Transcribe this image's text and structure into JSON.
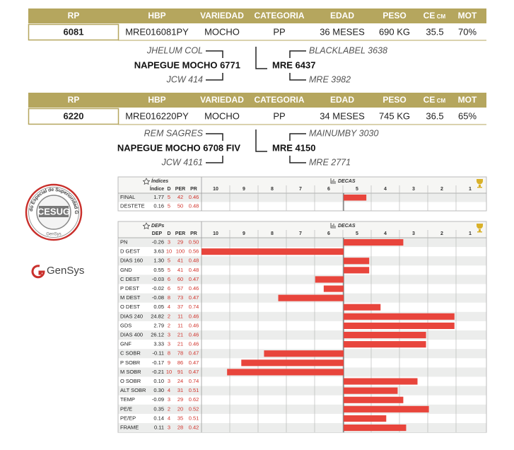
{
  "animals": [
    {
      "columns": [
        "RP",
        "HBP",
        "VARIEDAD",
        "CATEGORIA",
        "EDAD",
        "PESO",
        "CE",
        "MOT"
      ],
      "ce_unit": "CM",
      "values": [
        "6081",
        "MRE016081PY",
        "MOCHO",
        "PP",
        "36 MESES",
        "690 KG",
        "35.5",
        "70%"
      ],
      "pedigree": {
        "sire_sire": "JHELUM COL",
        "sire": "NAPEGUE MOCHO 6771",
        "sire_dam": "JCW 414",
        "dam_sire": "BLACKLABEL 3638",
        "dam": "MRE 6437",
        "dam_dam": "MRE 3982"
      }
    },
    {
      "columns": [
        "RP",
        "HBP",
        "VARIEDAD",
        "CATEGORIA",
        "EDAD",
        "PESO",
        "CE",
        "MOT"
      ],
      "ce_unit": "CM",
      "values": [
        "6220",
        "MRE016220PY",
        "MOCHO",
        "PP",
        "34 MESES",
        "745 KG",
        "36.5",
        "65%"
      ],
      "pedigree": {
        "sire_sire": "REM SAGRES",
        "sire": "NAPEGUE MOCHO 6708 FIV",
        "sire_dam": "JCW 4161",
        "dam_sire": "MAINUMBY 3030",
        "dam": "MRE 4150",
        "dam_dam": "MRE 2771"
      }
    }
  ],
  "seal": {
    "arc_text": "Certificado Especial de Superioridad Genética",
    "center": "CESUG",
    "bottom": "GenSys"
  },
  "brand": "GenSys",
  "bar_color": "#e8453c",
  "per_range": [
    100,
    0
  ],
  "indices": {
    "title": "Índices",
    "columns": [
      "Índice",
      "D",
      "PER",
      "PR"
    ],
    "decas_title": "DECAS",
    "decas": [
      10,
      9,
      8,
      7,
      6,
      5,
      4,
      3,
      2,
      1
    ],
    "rows": [
      {
        "name": "FINAL",
        "val": "1.77",
        "d": 5,
        "per": 42,
        "pr": "0.46"
      },
      {
        "name": "DESTETE",
        "val": "0.16",
        "d": 5,
        "per": 50,
        "pr": "0.48"
      }
    ]
  },
  "deps": {
    "title": "DEPs",
    "columns": [
      "DEP",
      "D",
      "PER",
      "PR"
    ],
    "decas_title": "DECAS",
    "decas": [
      10,
      9,
      8,
      7,
      6,
      5,
      4,
      3,
      2,
      1
    ],
    "rows": [
      {
        "name": "PN",
        "val": "-0.26",
        "d": 3,
        "per": 29,
        "pr": "0.50"
      },
      {
        "name": "D GEST",
        "val": "3.63",
        "d": 10,
        "per": 100,
        "pr": "0.56"
      },
      {
        "name": "DIAS 160",
        "val": "1.30",
        "d": 5,
        "per": 41,
        "pr": "0.48"
      },
      {
        "name": "GND",
        "val": "0.55",
        "d": 5,
        "per": 41,
        "pr": "0.48"
      },
      {
        "name": "C DEST",
        "val": "-0.03",
        "d": 6,
        "per": 60,
        "pr": "0.47"
      },
      {
        "name": "P DEST",
        "val": "-0.02",
        "d": 6,
        "per": 57,
        "pr": "0.46"
      },
      {
        "name": "M DEST",
        "val": "-0.08",
        "d": 8,
        "per": 73,
        "pr": "0.47"
      },
      {
        "name": "O DEST",
        "val": "0.05",
        "d": 4,
        "per": 37,
        "pr": "0.74"
      },
      {
        "name": "DIAS 240",
        "val": "24.82",
        "d": 2,
        "per": 11,
        "pr": "0.46"
      },
      {
        "name": "GDS",
        "val": "2.79",
        "d": 2,
        "per": 11,
        "pr": "0.46"
      },
      {
        "name": "DIAS 400",
        "val": "26.12",
        "d": 3,
        "per": 21,
        "pr": "0.46"
      },
      {
        "name": "GNF",
        "val": "3.33",
        "d": 3,
        "per": 21,
        "pr": "0.46"
      },
      {
        "name": "C SOBR",
        "val": "-0.11",
        "d": 8,
        "per": 78,
        "pr": "0.47"
      },
      {
        "name": "P SOBR",
        "val": "-0.17",
        "d": 9,
        "per": 86,
        "pr": "0.47"
      },
      {
        "name": "M SOBR",
        "val": "-0.21",
        "d": 10,
        "per": 91,
        "pr": "0.47"
      },
      {
        "name": "O SOBR",
        "val": "0.10",
        "d": 3,
        "per": 24,
        "pr": "0.74"
      },
      {
        "name": "ALT SOBR",
        "val": "0.30",
        "d": 4,
        "per": 31,
        "pr": "0.51"
      },
      {
        "name": "TEMP",
        "val": "-0.09",
        "d": 3,
        "per": 29,
        "pr": "0.62"
      },
      {
        "name": "PE/E",
        "val": "0.35",
        "d": 2,
        "per": 20,
        "pr": "0.52"
      },
      {
        "name": "PE/EP",
        "val": "0.14",
        "d": 4,
        "per": 35,
        "pr": "0.51"
      },
      {
        "name": "FRAME",
        "val": "0.11",
        "d": 3,
        "per": 28,
        "pr": "0.42"
      }
    ]
  }
}
